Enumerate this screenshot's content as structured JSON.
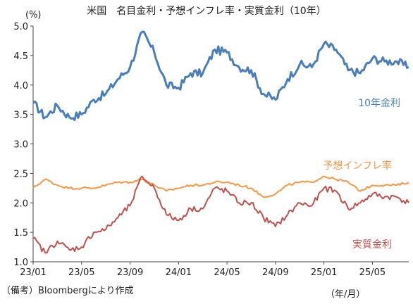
{
  "chart_data": {
    "type": "line",
    "title": "米国　名目金利・予想インフレ率・実質金利（10年）",
    "ylabel": "(%)",
    "xlabel": "（年/月）",
    "note": "（備考）Bloombergにより作成",
    "ylim": [
      1.0,
      5.0
    ],
    "yticks": [
      "5.0",
      "4.5",
      "4.0",
      "3.5",
      "3.0",
      "2.5",
      "2.0",
      "1.5",
      "1.0"
    ],
    "xlim": [
      "2023-01",
      "2025-08"
    ],
    "xticks": [
      "23/01",
      "23/05",
      "23/09",
      "24/01",
      "24/05",
      "24/09",
      "25/01",
      "25/05"
    ],
    "grid": false,
    "series": [
      {
        "name": "10年金利",
        "color": "#4a7ebb",
        "x": [
          "2023-01",
          "2023-02",
          "2023-03",
          "2023-04",
          "2023-05",
          "2023-06",
          "2023-07",
          "2023-08",
          "2023-09",
          "2023-10",
          "2023-11",
          "2023-12",
          "2024-01",
          "2024-02",
          "2024-03",
          "2024-04",
          "2024-05",
          "2024-06",
          "2024-07",
          "2024-08",
          "2024-09",
          "2024-10",
          "2024-11",
          "2024-12",
          "2025-01",
          "2025-02",
          "2025-03",
          "2025-04",
          "2025-05",
          "2025-06",
          "2025-07",
          "2025-08"
        ],
        "values": [
          3.7,
          3.45,
          3.65,
          3.45,
          3.5,
          3.75,
          3.85,
          4.1,
          4.3,
          4.9,
          4.55,
          4.0,
          3.95,
          4.2,
          4.2,
          4.6,
          4.55,
          4.3,
          4.25,
          3.85,
          3.75,
          4.1,
          4.35,
          4.3,
          4.7,
          4.6,
          4.25,
          4.2,
          4.45,
          4.4,
          4.4,
          4.3
        ]
      },
      {
        "name": "予想インフレ率",
        "color": "#f79646",
        "x": [
          "2023-01",
          "2023-02",
          "2023-03",
          "2023-04",
          "2023-05",
          "2023-06",
          "2023-07",
          "2023-08",
          "2023-09",
          "2023-10",
          "2023-11",
          "2023-12",
          "2024-01",
          "2024-02",
          "2024-03",
          "2024-04",
          "2024-05",
          "2024-06",
          "2024-07",
          "2024-08",
          "2024-09",
          "2024-10",
          "2024-11",
          "2024-12",
          "2025-01",
          "2025-02",
          "2025-03",
          "2025-04",
          "2025-05",
          "2025-06",
          "2025-07",
          "2025-08"
        ],
        "values": [
          2.25,
          2.4,
          2.3,
          2.25,
          2.25,
          2.25,
          2.3,
          2.35,
          2.35,
          2.4,
          2.3,
          2.2,
          2.25,
          2.3,
          2.3,
          2.35,
          2.35,
          2.3,
          2.25,
          2.1,
          2.15,
          2.3,
          2.35,
          2.35,
          2.45,
          2.4,
          2.35,
          2.2,
          2.3,
          2.3,
          2.3,
          2.35
        ]
      },
      {
        "name": "実質金利",
        "color": "#c0504d",
        "x": [
          "2023-01",
          "2023-02",
          "2023-03",
          "2023-04",
          "2023-05",
          "2023-06",
          "2023-07",
          "2023-08",
          "2023-09",
          "2023-10",
          "2023-11",
          "2023-12",
          "2024-01",
          "2024-02",
          "2024-03",
          "2024-04",
          "2024-05",
          "2024-06",
          "2024-07",
          "2024-08",
          "2024-09",
          "2024-10",
          "2024-11",
          "2024-12",
          "2025-01",
          "2025-02",
          "2025-03",
          "2025-04",
          "2025-05",
          "2025-06",
          "2025-07",
          "2025-08"
        ],
        "values": [
          1.4,
          1.15,
          1.35,
          1.2,
          1.25,
          1.5,
          1.55,
          1.75,
          1.95,
          2.45,
          2.25,
          1.8,
          1.7,
          1.9,
          1.9,
          2.25,
          2.2,
          2.0,
          2.0,
          1.75,
          1.6,
          1.8,
          2.0,
          1.95,
          2.25,
          2.2,
          1.9,
          2.0,
          2.15,
          2.1,
          2.1,
          2.0
        ]
      }
    ]
  }
}
